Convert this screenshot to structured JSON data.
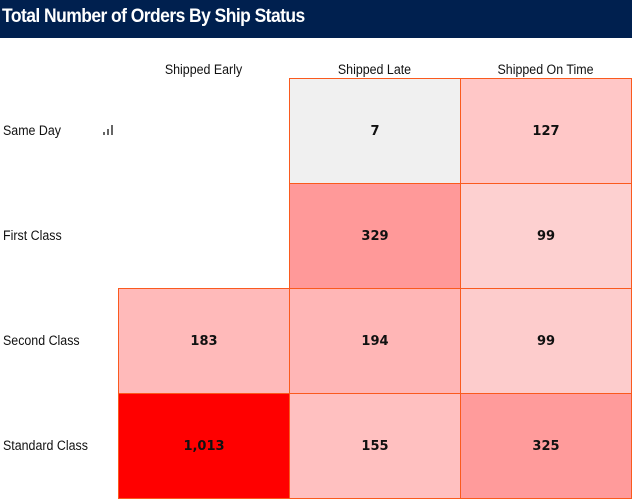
{
  "chart_data": {
    "type": "heatmap",
    "title": "Total Number of Orders By Ship Status",
    "columns": [
      "Shipped Early",
      "Shipped Late",
      "Shipped On Time"
    ],
    "rows": [
      "Same Day",
      "First Class",
      "Second Class",
      "Standard Class"
    ],
    "values": [
      [
        null,
        7,
        127
      ],
      [
        null,
        329,
        99
      ],
      [
        183,
        194,
        99
      ],
      [
        1013,
        155,
        325
      ]
    ],
    "labels": [
      [
        null,
        "7",
        "127"
      ],
      [
        null,
        "329",
        "99"
      ],
      [
        "183",
        "194",
        "99"
      ],
      [
        "1,013",
        "155",
        "325"
      ]
    ],
    "colors": [
      [
        null,
        "#f0f0f0",
        "#ffc7c7"
      ],
      [
        null,
        "#ff9999",
        "#fdd0d0"
      ],
      [
        "#ffbaba",
        "#ffb6b6",
        "#fdcccc"
      ],
      [
        "#ff0000",
        "#ffc0c0",
        "#ff9b9b"
      ]
    ],
    "border_color": "#fa5a1e"
  },
  "header": {
    "background": "#00204f"
  },
  "icons": {
    "row_icon": "bar-chart-icon"
  }
}
